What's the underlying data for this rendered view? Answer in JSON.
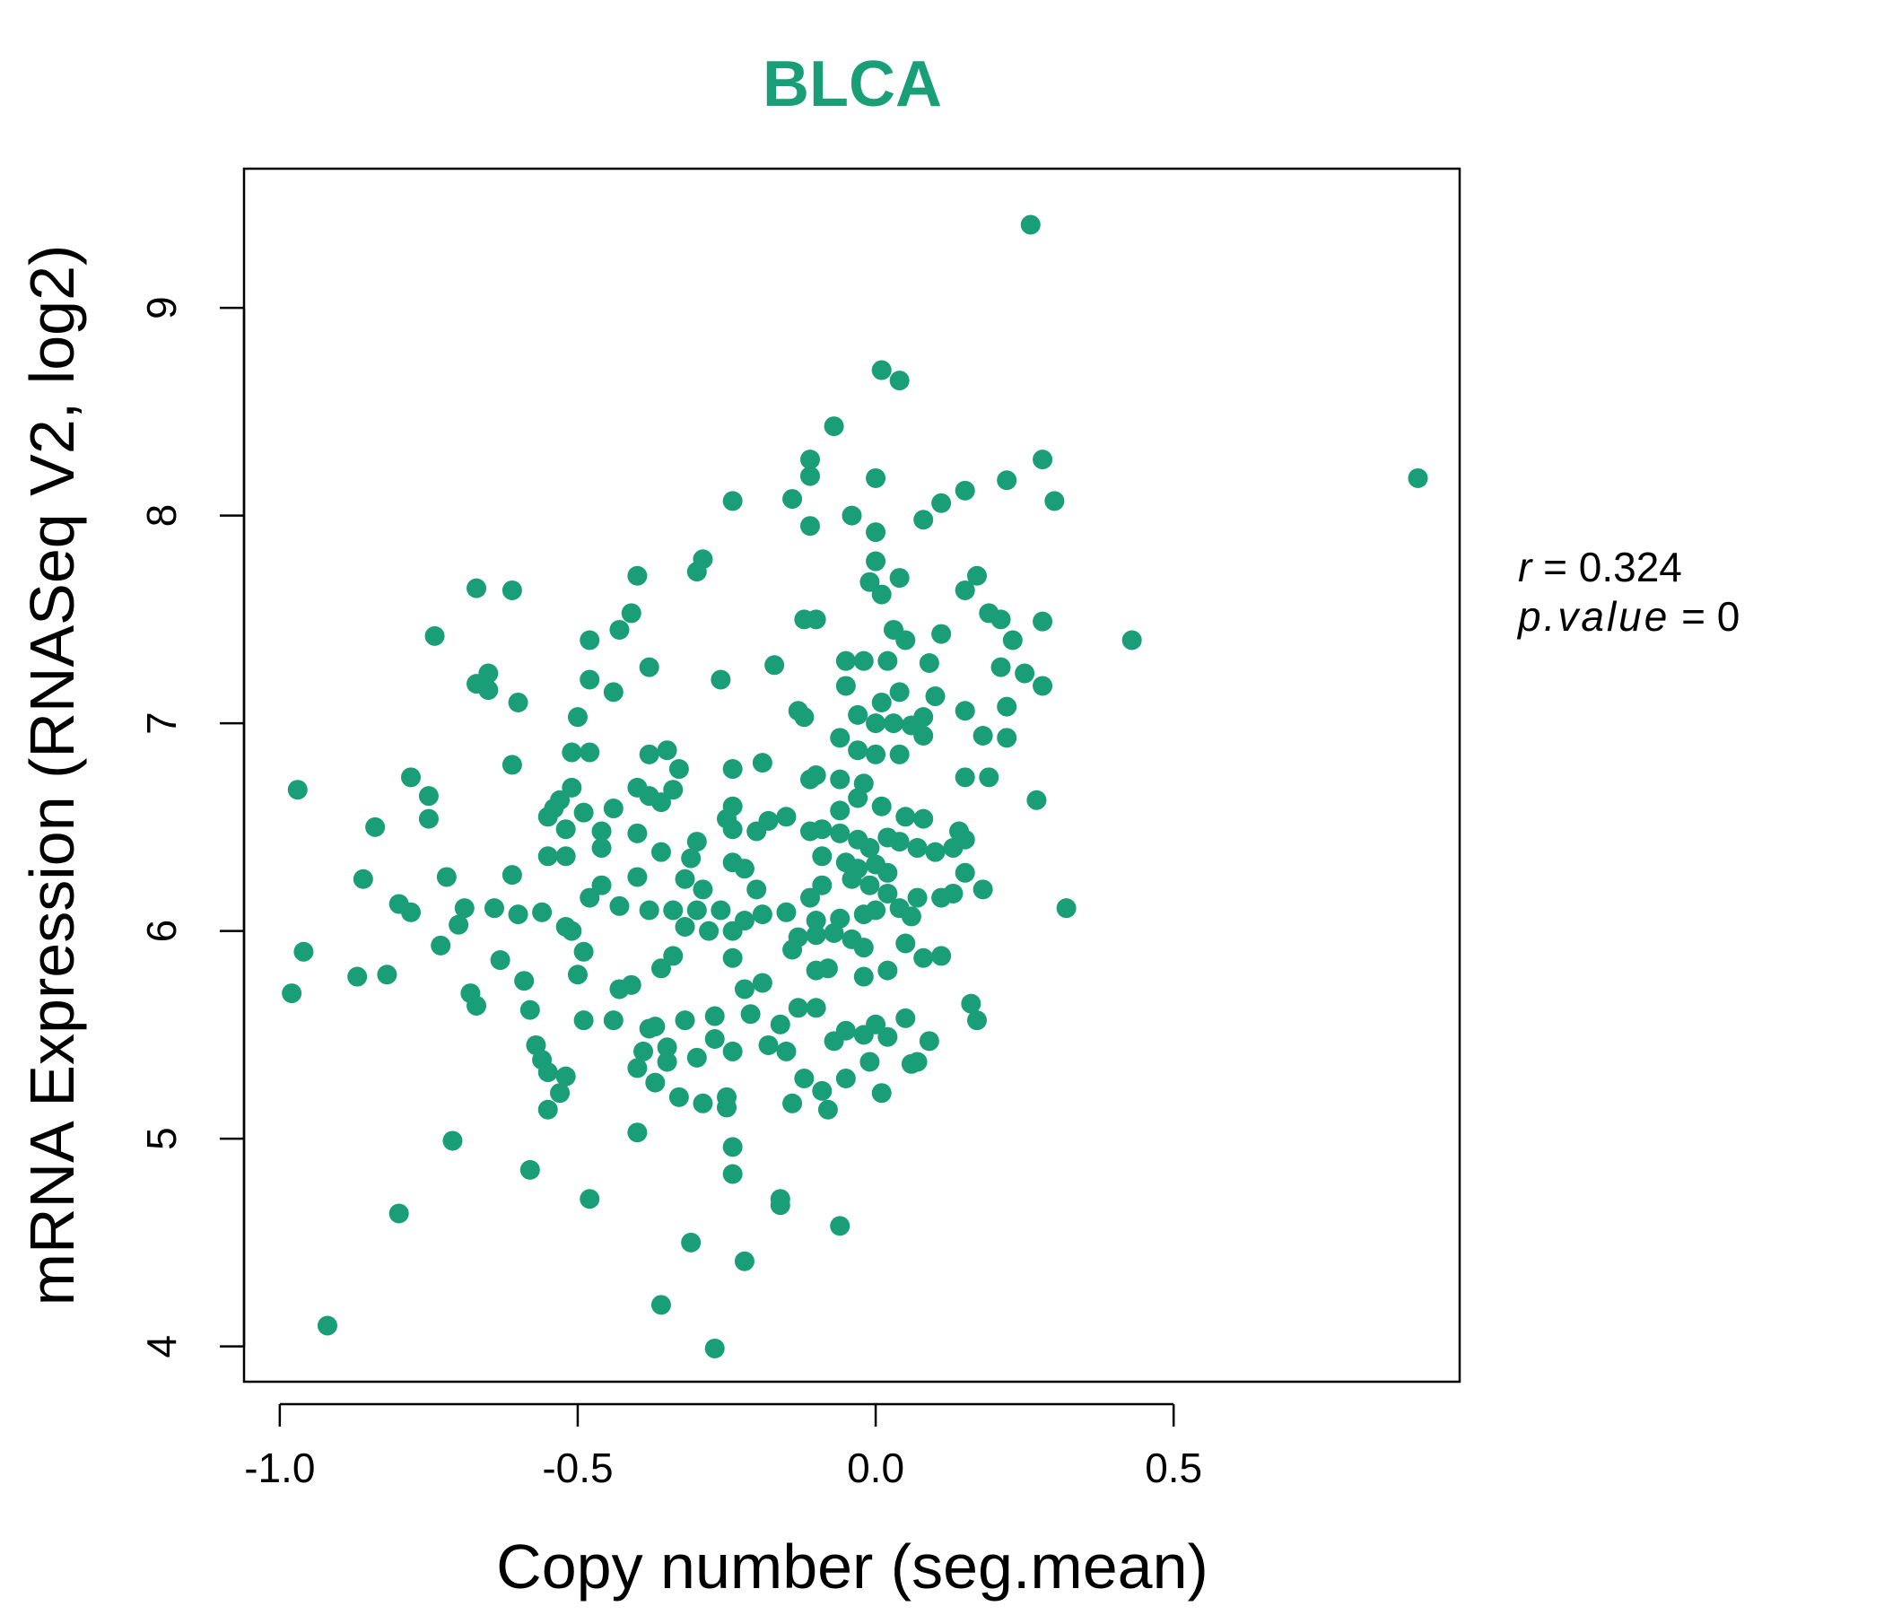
{
  "chart_data": {
    "type": "scatter",
    "title": "BLCA",
    "xlabel": "Copy number (seg.mean)",
    "ylabel": "mRNA Expression (RNASeq V2, log2)",
    "xlim": [
      -1.06,
      0.98
    ],
    "ylim": [
      3.83,
      9.67
    ],
    "x_ticks": [
      "-1.0",
      "-0.5",
      "0.0",
      "0.5"
    ],
    "y_ticks": [
      "4",
      "5",
      "6",
      "7",
      "8",
      "9"
    ],
    "grid": false,
    "point_color": "#1A9E77",
    "stats": {
      "r_label": "r",
      "r_value": "0.324",
      "p_label": "p.value",
      "p_value": "0"
    },
    "points": [
      [
        0.26,
        9.4
      ],
      [
        0.01,
        8.7
      ],
      [
        0.04,
        8.65
      ],
      [
        -0.07,
        8.43
      ],
      [
        0.91,
        8.18
      ],
      [
        -0.11,
        8.27
      ],
      [
        -0.11,
        8.19
      ],
      [
        0.28,
        8.27
      ],
      [
        0.0,
        8.18
      ],
      [
        0.22,
        8.17
      ],
      [
        0.15,
        8.12
      ],
      [
        0.11,
        8.06
      ],
      [
        0.3,
        8.07
      ],
      [
        -0.24,
        8.07
      ],
      [
        -0.14,
        8.08
      ],
      [
        -0.04,
        8.0
      ],
      [
        0.08,
        7.98
      ],
      [
        -0.11,
        7.95
      ],
      [
        0.0,
        7.92
      ],
      [
        -0.3,
        7.73
      ],
      [
        -0.29,
        7.79
      ],
      [
        0.0,
        7.78
      ],
      [
        -0.4,
        7.71
      ],
      [
        -0.67,
        7.65
      ],
      [
        -0.61,
        7.64
      ],
      [
        0.04,
        7.7
      ],
      [
        0.17,
        7.71
      ],
      [
        0.15,
        7.64
      ],
      [
        -0.01,
        7.68
      ],
      [
        0.01,
        7.62
      ],
      [
        -0.41,
        7.53
      ],
      [
        -0.43,
        7.45
      ],
      [
        -0.74,
        7.42
      ],
      [
        -0.48,
        7.4
      ],
      [
        -0.12,
        7.5
      ],
      [
        -0.1,
        7.5
      ],
      [
        0.19,
        7.53
      ],
      [
        0.21,
        7.5
      ],
      [
        0.28,
        7.49
      ],
      [
        0.43,
        7.4
      ],
      [
        0.03,
        7.45
      ],
      [
        0.05,
        7.4
      ],
      [
        0.11,
        7.43
      ],
      [
        0.23,
        7.4
      ],
      [
        -0.38,
        7.27
      ],
      [
        -0.48,
        7.21
      ],
      [
        -0.26,
        7.21
      ],
      [
        -0.17,
        7.28
      ],
      [
        -0.05,
        7.3
      ],
      [
        -0.02,
        7.3
      ],
      [
        0.02,
        7.3
      ],
      [
        0.09,
        7.29
      ],
      [
        0.21,
        7.27
      ],
      [
        0.25,
        7.24
      ],
      [
        0.28,
        7.18
      ],
      [
        -0.65,
        7.24
      ],
      [
        -0.67,
        7.19
      ],
      [
        -0.65,
        7.16
      ],
      [
        -0.6,
        7.1
      ],
      [
        -0.44,
        7.15
      ],
      [
        -0.05,
        7.18
      ],
      [
        0.04,
        7.15
      ],
      [
        0.1,
        7.13
      ],
      [
        0.01,
        7.1
      ],
      [
        -0.13,
        7.06
      ],
      [
        -0.12,
        7.03
      ],
      [
        -0.03,
        7.04
      ],
      [
        0.0,
        7.0
      ],
      [
        0.03,
        7.0
      ],
      [
        0.06,
        6.99
      ],
      [
        0.08,
        7.03
      ],
      [
        0.15,
        7.06
      ],
      [
        0.22,
        7.08
      ],
      [
        -0.5,
        7.03
      ],
      [
        -0.51,
        6.86
      ],
      [
        -0.48,
        6.86
      ],
      [
        -0.38,
        6.85
      ],
      [
        -0.35,
        6.87
      ],
      [
        -0.33,
        6.78
      ],
      [
        -0.24,
        6.78
      ],
      [
        -0.19,
        6.81
      ],
      [
        -0.06,
        6.93
      ],
      [
        -0.03,
        6.87
      ],
      [
        0.0,
        6.85
      ],
      [
        0.04,
        6.85
      ],
      [
        0.08,
        6.94
      ],
      [
        0.18,
        6.94
      ],
      [
        0.22,
        6.93
      ],
      [
        0.15,
        6.74
      ],
      [
        0.19,
        6.74
      ],
      [
        -0.61,
        6.8
      ],
      [
        -0.78,
        6.74
      ],
      [
        -0.97,
        6.68
      ],
      [
        -0.75,
        6.65
      ],
      [
        -0.4,
        6.69
      ],
      [
        -0.38,
        6.65
      ],
      [
        -0.34,
        6.68
      ],
      [
        -0.36,
        6.62
      ],
      [
        -0.11,
        6.73
      ],
      [
        -0.1,
        6.75
      ],
      [
        -0.06,
        6.73
      ],
      [
        -0.02,
        6.71
      ],
      [
        -0.53,
        6.63
      ],
      [
        -0.54,
        6.59
      ],
      [
        -0.51,
        6.69
      ],
      [
        -0.49,
        6.57
      ],
      [
        -0.44,
        6.59
      ],
      [
        -0.24,
        6.6
      ],
      [
        -0.25,
        6.54
      ],
      [
        -0.15,
        6.55
      ],
      [
        -0.06,
        6.58
      ],
      [
        -0.03,
        6.64
      ],
      [
        0.01,
        6.6
      ],
      [
        0.05,
        6.55
      ],
      [
        0.08,
        6.54
      ],
      [
        0.27,
        6.63
      ],
      [
        -0.75,
        6.54
      ],
      [
        -0.84,
        6.5
      ],
      [
        -0.55,
        6.55
      ],
      [
        -0.52,
        6.49
      ],
      [
        -0.46,
        6.48
      ],
      [
        -0.4,
        6.47
      ],
      [
        -0.3,
        6.43
      ],
      [
        -0.24,
        6.49
      ],
      [
        -0.2,
        6.48
      ],
      [
        -0.18,
        6.53
      ],
      [
        -0.11,
        6.48
      ],
      [
        -0.09,
        6.49
      ],
      [
        -0.06,
        6.47
      ],
      [
        -0.03,
        6.44
      ],
      [
        -0.01,
        6.4
      ],
      [
        0.02,
        6.45
      ],
      [
        0.04,
        6.43
      ],
      [
        0.07,
        6.4
      ],
      [
        0.1,
        6.38
      ],
      [
        0.13,
        6.4
      ],
      [
        0.15,
        6.44
      ],
      [
        0.14,
        6.48
      ],
      [
        -0.55,
        6.36
      ],
      [
        -0.52,
        6.36
      ],
      [
        -0.46,
        6.4
      ],
      [
        -0.36,
        6.38
      ],
      [
        -0.31,
        6.35
      ],
      [
        -0.24,
        6.33
      ],
      [
        -0.22,
        6.3
      ],
      [
        -0.09,
        6.36
      ],
      [
        -0.05,
        6.33
      ],
      [
        -0.03,
        6.3
      ],
      [
        0.0,
        6.32
      ],
      [
        0.02,
        6.28
      ],
      [
        0.15,
        6.28
      ],
      [
        0.18,
        6.2
      ],
      [
        -0.61,
        6.27
      ],
      [
        -0.72,
        6.26
      ],
      [
        -0.86,
        6.25
      ],
      [
        -0.4,
        6.26
      ],
      [
        -0.46,
        6.22
      ],
      [
        -0.48,
        6.16
      ],
      [
        -0.32,
        6.25
      ],
      [
        -0.29,
        6.2
      ],
      [
        -0.2,
        6.2
      ],
      [
        -0.11,
        6.16
      ],
      [
        -0.09,
        6.22
      ],
      [
        -0.04,
        6.25
      ],
      [
        -0.01,
        6.22
      ],
      [
        0.02,
        6.18
      ],
      [
        0.07,
        6.16
      ],
      [
        0.11,
        6.16
      ],
      [
        0.13,
        6.18
      ],
      [
        -0.8,
        6.13
      ],
      [
        -0.78,
        6.09
      ],
      [
        -0.69,
        6.11
      ],
      [
        -0.64,
        6.11
      ],
      [
        -0.6,
        6.08
      ],
      [
        -0.56,
        6.09
      ],
      [
        -0.52,
        6.02
      ],
      [
        -0.51,
        6.0
      ],
      [
        -0.43,
        6.12
      ],
      [
        -0.38,
        6.1
      ],
      [
        -0.34,
        6.1
      ],
      [
        -0.3,
        6.1
      ],
      [
        -0.26,
        6.1
      ],
      [
        -0.22,
        6.05
      ],
      [
        -0.19,
        6.08
      ],
      [
        -0.15,
        6.09
      ],
      [
        -0.1,
        6.05
      ],
      [
        -0.06,
        6.06
      ],
      [
        -0.02,
        6.08
      ],
      [
        0.0,
        6.1
      ],
      [
        0.04,
        6.11
      ],
      [
        0.06,
        6.07
      ],
      [
        0.32,
        6.11
      ],
      [
        -0.7,
        6.03
      ],
      [
        -0.73,
        5.93
      ],
      [
        -0.96,
        5.9
      ],
      [
        -0.28,
        6.0
      ],
      [
        -0.32,
        6.02
      ],
      [
        -0.24,
        6.0
      ],
      [
        -0.13,
        5.97
      ],
      [
        -0.1,
        5.98
      ],
      [
        -0.07,
        5.99
      ],
      [
        -0.04,
        5.96
      ],
      [
        -0.02,
        5.92
      ],
      [
        0.05,
        5.94
      ],
      [
        -0.98,
        5.7
      ],
      [
        -0.87,
        5.78
      ],
      [
        -0.82,
        5.79
      ],
      [
        -0.63,
        5.86
      ],
      [
        -0.59,
        5.76
      ],
      [
        -0.49,
        5.9
      ],
      [
        -0.5,
        5.79
      ],
      [
        -0.43,
        5.72
      ],
      [
        -0.41,
        5.74
      ],
      [
        -0.36,
        5.82
      ],
      [
        -0.34,
        5.88
      ],
      [
        -0.24,
        5.87
      ],
      [
        -0.19,
        5.75
      ],
      [
        -0.22,
        5.72
      ],
      [
        -0.14,
        5.91
      ],
      [
        -0.1,
        5.81
      ],
      [
        -0.08,
        5.82
      ],
      [
        -0.02,
        5.78
      ],
      [
        0.02,
        5.81
      ],
      [
        0.08,
        5.87
      ],
      [
        0.11,
        5.88
      ],
      [
        -0.68,
        5.7
      ],
      [
        -0.67,
        5.64
      ],
      [
        -0.58,
        5.62
      ],
      [
        -0.49,
        5.57
      ],
      [
        -0.44,
        5.57
      ],
      [
        -0.38,
        5.53
      ],
      [
        -0.37,
        5.54
      ],
      [
        -0.32,
        5.57
      ],
      [
        -0.27,
        5.59
      ],
      [
        -0.21,
        5.6
      ],
      [
        -0.16,
        5.55
      ],
      [
        -0.13,
        5.63
      ],
      [
        -0.1,
        5.63
      ],
      [
        -0.07,
        5.47
      ],
      [
        -0.05,
        5.52
      ],
      [
        -0.02,
        5.5
      ],
      [
        0.0,
        5.55
      ],
      [
        0.05,
        5.58
      ],
      [
        0.02,
        5.49
      ],
      [
        0.09,
        5.47
      ],
      [
        0.16,
        5.65
      ],
      [
        0.17,
        5.57
      ],
      [
        -0.57,
        5.45
      ],
      [
        -0.56,
        5.38
      ],
      [
        -0.55,
        5.32
      ],
      [
        -0.52,
        5.3
      ],
      [
        -0.53,
        5.22
      ],
      [
        -0.55,
        5.14
      ],
      [
        -0.39,
        5.42
      ],
      [
        -0.35,
        5.44
      ],
      [
        -0.35,
        5.37
      ],
      [
        -0.3,
        5.39
      ],
      [
        -0.27,
        5.48
      ],
      [
        -0.24,
        5.42
      ],
      [
        -0.18,
        5.45
      ],
      [
        -0.15,
        5.42
      ],
      [
        -0.12,
        5.29
      ],
      [
        -0.09,
        5.23
      ],
      [
        -0.05,
        5.29
      ],
      [
        -0.01,
        5.37
      ],
      [
        0.01,
        5.22
      ],
      [
        0.06,
        5.36
      ],
      [
        0.07,
        5.37
      ],
      [
        -0.4,
        5.34
      ],
      [
        -0.37,
        5.27
      ],
      [
        -0.33,
        5.2
      ],
      [
        -0.29,
        5.17
      ],
      [
        -0.25,
        5.15
      ],
      [
        -0.25,
        5.2
      ],
      [
        -0.14,
        5.17
      ],
      [
        -0.08,
        5.14
      ],
      [
        -0.71,
        4.99
      ],
      [
        -0.4,
        5.03
      ],
      [
        -0.24,
        4.96
      ],
      [
        -0.58,
        4.85
      ],
      [
        -0.24,
        4.83
      ],
      [
        -0.16,
        4.71
      ],
      [
        -0.16,
        4.68
      ],
      [
        -0.48,
        4.71
      ],
      [
        -0.8,
        4.64
      ],
      [
        -0.06,
        4.58
      ],
      [
        -0.31,
        4.5
      ],
      [
        -0.22,
        4.41
      ],
      [
        -0.36,
        4.2
      ],
      [
        -0.27,
        3.99
      ],
      [
        -0.92,
        4.1
      ]
    ]
  }
}
